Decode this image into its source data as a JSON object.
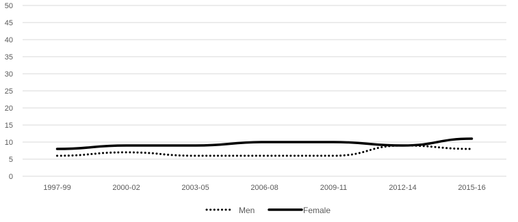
{
  "chart_data": {
    "type": "line",
    "categories": [
      "1997-99",
      "2000-02",
      "2003-05",
      "2006-08",
      "2009-11",
      "2012-14",
      "2015-16"
    ],
    "series": [
      {
        "name": "Men",
        "values": [
          6,
          7,
          6,
          6,
          6,
          9,
          8
        ],
        "style": "dotted",
        "color": "#000000"
      },
      {
        "name": "Female",
        "values": [
          8,
          9,
          9,
          10,
          10,
          9,
          11
        ],
        "style": "solid",
        "color": "#000000"
      }
    ],
    "ylim": [
      0,
      50
    ],
    "yticks": [
      "0",
      "5",
      "10",
      "15",
      "20",
      "25",
      "30",
      "35",
      "40",
      "45",
      "50"
    ],
    "grid": true,
    "gridColor": "#d9d9d9",
    "legendPlacement": "bottom"
  }
}
